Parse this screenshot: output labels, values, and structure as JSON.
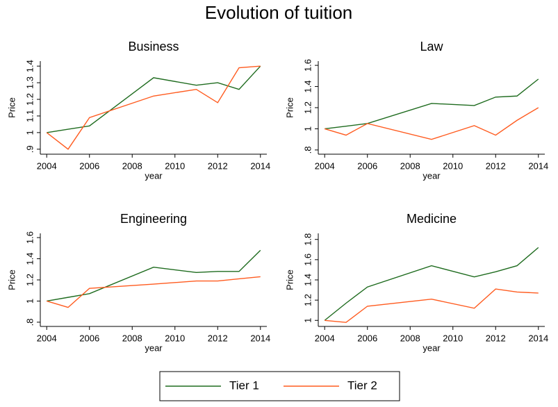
{
  "title": "Evolution of tuition",
  "legend": "bottom",
  "chart_data": [
    {
      "type": "line",
      "title": "Business",
      "x_label": "year",
      "y_label": "Price",
      "x": [
        2004,
        2005,
        2006,
        2009,
        2011,
        2012,
        2013,
        2014
      ],
      "series": [
        {
          "name": "Tier 1",
          "color": "#1e6b1e",
          "values": [
            1.0,
            1.02,
            1.04,
            1.33,
            1.285,
            1.3,
            1.26,
            1.4
          ]
        },
        {
          "name": "Tier 2",
          "color": "#ff5b1f",
          "values": [
            1.0,
            0.9,
            1.09,
            1.22,
            1.26,
            1.18,
            1.39,
            1.4
          ]
        }
      ],
      "xlim": [
        2003.7,
        2014.3
      ],
      "xticks": [
        2004,
        2006,
        2008,
        2010,
        2012,
        2014
      ],
      "ylim": [
        0.87,
        1.43
      ],
      "yticks": [
        {
          "value": 0.9,
          "label": ".9"
        },
        1,
        1.1,
        1.2,
        1.3,
        1.4
      ]
    },
    {
      "type": "line",
      "title": "Law",
      "x_label": "year",
      "y_label": "Price",
      "x": [
        2004,
        2005,
        2006,
        2009,
        2011,
        2012,
        2013,
        2014
      ],
      "series": [
        {
          "name": "Tier 1",
          "color": "#1e6b1e",
          "values": [
            1.0,
            1.025,
            1.05,
            1.24,
            1.22,
            1.3,
            1.31,
            1.47
          ]
        },
        {
          "name": "Tier 2",
          "color": "#ff5b1f",
          "values": [
            1.0,
            0.94,
            1.05,
            0.9,
            1.03,
            0.94,
            1.08,
            1.2
          ]
        }
      ],
      "xlim": [
        2003.7,
        2014.3
      ],
      "xticks": [
        2004,
        2006,
        2008,
        2010,
        2012,
        2014
      ],
      "ylim": [
        0.76,
        1.64
      ],
      "yticks": [
        {
          "value": 0.8,
          "label": ".8"
        },
        1,
        1.2,
        1.4,
        1.6
      ]
    },
    {
      "type": "line",
      "title": "Engineering",
      "x_label": "year",
      "y_label": "Price",
      "x": [
        2004,
        2005,
        2006,
        2009,
        2011,
        2012,
        2013,
        2014
      ],
      "series": [
        {
          "name": "Tier 1",
          "color": "#1e6b1e",
          "values": [
            1.0,
            1.035,
            1.07,
            1.32,
            1.27,
            1.28,
            1.28,
            1.48
          ]
        },
        {
          "name": "Tier 2",
          "color": "#ff5b1f",
          "values": [
            1.0,
            0.94,
            1.12,
            1.16,
            1.19,
            1.19,
            1.21,
            1.23
          ]
        }
      ],
      "xlim": [
        2003.7,
        2014.3
      ],
      "xticks": [
        2004,
        2006,
        2008,
        2010,
        2012,
        2014
      ],
      "ylim": [
        0.76,
        1.64
      ],
      "yticks": [
        {
          "value": 0.8,
          "label": ".8"
        },
        1,
        1.2,
        1.4,
        1.6
      ]
    },
    {
      "type": "line",
      "title": "Medicine",
      "x_label": "year",
      "y_label": "Price",
      "x": [
        2004,
        2005,
        2006,
        2009,
        2011,
        2012,
        2013,
        2014
      ],
      "series": [
        {
          "name": "Tier 1",
          "color": "#1e6b1e",
          "values": [
            1.0,
            1.17,
            1.33,
            1.54,
            1.43,
            1.48,
            1.54,
            1.72
          ]
        },
        {
          "name": "Tier 2",
          "color": "#ff5b1f",
          "values": [
            1.0,
            0.98,
            1.14,
            1.21,
            1.12,
            1.31,
            1.28,
            1.27
          ]
        }
      ],
      "xlim": [
        2003.7,
        2014.3
      ],
      "xticks": [
        2004,
        2006,
        2008,
        2010,
        2012,
        2014
      ],
      "ylim": [
        0.94,
        1.86
      ],
      "yticks": [
        1,
        1.2,
        1.4,
        1.6,
        1.8
      ]
    }
  ]
}
